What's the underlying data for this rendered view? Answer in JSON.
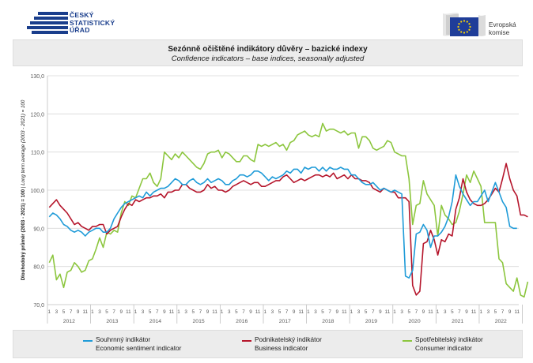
{
  "logos": {
    "czso_text": "ČESKÝ\nSTATISTICKÝ\nÚŘAD",
    "ec_text": "Evropská\nkomise"
  },
  "title": {
    "main": "Sezónně očištěné indikátory důvěry – bazické indexy",
    "sub": "Confidence indicators – base indices, seasonally adjusted"
  },
  "chart_data": {
    "type": "line",
    "ylim": [
      70,
      130
    ],
    "yticks": [
      "70,0",
      "80,0",
      "90,0",
      "100,0",
      "110,0",
      "120,0",
      "130,0"
    ],
    "ylabel_cz": "Dlouhodobý průměr (2003 - 2021) = 100",
    "ylabel_en": "Long term average (2003 - 2021) = 100",
    "ylabel_sep": " | ",
    "month_ticks": [
      "1",
      "3",
      "5",
      "7",
      "9",
      "11"
    ],
    "years": [
      "2012",
      "2013",
      "2014",
      "2015",
      "2016",
      "2017",
      "2018",
      "2019",
      "2020",
      "2021",
      "2022"
    ],
    "grid": "horizontal",
    "legend_position": "bottom",
    "series": [
      {
        "key": "esi",
        "name_cz": "Souhrnný indikátor",
        "name_en": "Economic sentiment indicator",
        "color": "#1f9bd8",
        "values": [
          93,
          94,
          93.5,
          92.5,
          91,
          90.5,
          89.5,
          89,
          89.5,
          89,
          88,
          89,
          89.5,
          90,
          90,
          89,
          89,
          90,
          92.5,
          94,
          95.5,
          96.5,
          97,
          97.5,
          98,
          98.5,
          98,
          99.5,
          98.5,
          99.5,
          100,
          100.5,
          100.5,
          101,
          102,
          103,
          102.5,
          101.5,
          101.5,
          102.5,
          103,
          102,
          101.5,
          102,
          103,
          102,
          102.5,
          103,
          102.5,
          101.5,
          101.5,
          102.5,
          103,
          104,
          104,
          103.5,
          104,
          105,
          105,
          104.5,
          103.5,
          102.5,
          103.5,
          103,
          103.5,
          104,
          105,
          104.5,
          105.5,
          105.5,
          104.5,
          106,
          105.5,
          106,
          106,
          105,
          106,
          105,
          106,
          105.5,
          105.5,
          106,
          105.5,
          105.5,
          104,
          104,
          103,
          102,
          101.5,
          101.5,
          102,
          101,
          100,
          100.5,
          100,
          99.5,
          100,
          99.5,
          99,
          77.5,
          77,
          79,
          88.5,
          89,
          91,
          89.5,
          85,
          88,
          88,
          89,
          90.5,
          93,
          97,
          104,
          101,
          99,
          97.5,
          96,
          97,
          97,
          98.5,
          100,
          97,
          99.5,
          102,
          99.5,
          97,
          95.5,
          90.5,
          90,
          90
        ]
      },
      {
        "key": "bci",
        "name_cz": "Podnikatelský indikátor",
        "name_en": "Business indicator",
        "color": "#b5152b",
        "values": [
          95.5,
          96.5,
          97.5,
          96,
          95,
          94,
          92.5,
          91,
          91.5,
          90.5,
          90,
          89.5,
          90.5,
          90.5,
          91,
          91,
          88.5,
          89.5,
          90,
          90.5,
          93,
          95,
          96.5,
          96,
          97.5,
          97,
          97.5,
          98,
          98,
          98.5,
          98.5,
          99,
          98,
          99.5,
          99.5,
          100,
          100,
          101.5,
          101.5,
          100.5,
          100,
          99.5,
          99.5,
          100,
          101.5,
          100.5,
          101,
          100,
          100,
          99.5,
          100,
          101,
          101.5,
          102,
          102.5,
          102,
          101.5,
          102,
          102,
          101,
          101,
          101.5,
          102,
          102.5,
          102.5,
          103.5,
          104,
          103,
          102,
          102.5,
          103,
          102.5,
          103,
          103.5,
          104,
          104,
          103.5,
          104,
          103.5,
          104.5,
          103,
          103.5,
          104,
          103,
          104,
          103,
          103,
          102.5,
          102.5,
          102,
          100.5,
          100,
          99.5,
          100.5,
          100,
          99.5,
          99.5,
          98,
          98,
          98,
          97,
          75,
          72.5,
          73.5,
          86,
          86.5,
          89.5,
          87,
          83,
          87,
          86.5,
          88.5,
          88,
          95,
          98,
          103,
          99.5,
          97.5,
          96.5,
          96,
          96,
          96.5,
          97.5,
          99,
          100.5,
          99.5,
          103,
          107,
          103,
          100,
          98.5,
          93.5,
          93.5,
          93
        ]
      },
      {
        "key": "cci",
        "name_cz": "Spotřebitelský indikátor",
        "name_en": "Consumer indicator",
        "color": "#8cc63e",
        "values": [
          81,
          83,
          76.5,
          78,
          74.5,
          78.5,
          79,
          81,
          80,
          78.5,
          79,
          81.5,
          82,
          84.5,
          87.5,
          85,
          89,
          88.5,
          89.5,
          89,
          94,
          97,
          96,
          98.5,
          98,
          100.5,
          103,
          103,
          104.5,
          102,
          101,
          103,
          110,
          109,
          108,
          109.5,
          108.5,
          110,
          109,
          108,
          107,
          106,
          105.5,
          107,
          109.5,
          110,
          110,
          110.5,
          108.5,
          110,
          109.5,
          108.5,
          107.5,
          107.5,
          109,
          109,
          108,
          107.5,
          112,
          111.5,
          112,
          111.5,
          112,
          112.5,
          111.5,
          112,
          110.5,
          112.5,
          113,
          114.5,
          115,
          115.5,
          114.5,
          114,
          114.5,
          114,
          117.5,
          115.5,
          116,
          116,
          115.5,
          115,
          115.5,
          114.5,
          115,
          115,
          111,
          114,
          114,
          113,
          111,
          110.5,
          111,
          111.5,
          113,
          112.5,
          110,
          109.5,
          109,
          109,
          103,
          91,
          96,
          96.5,
          102.5,
          99,
          97.5,
          96,
          88,
          96,
          93.5,
          92.5,
          91,
          91.5,
          94.5,
          99,
          104,
          102,
          105,
          103,
          101,
          91.5,
          91.5,
          91.5,
          91.5,
          82,
          81,
          75.5,
          74.5,
          73.5,
          77,
          72.5,
          72,
          76
        ]
      }
    ]
  }
}
